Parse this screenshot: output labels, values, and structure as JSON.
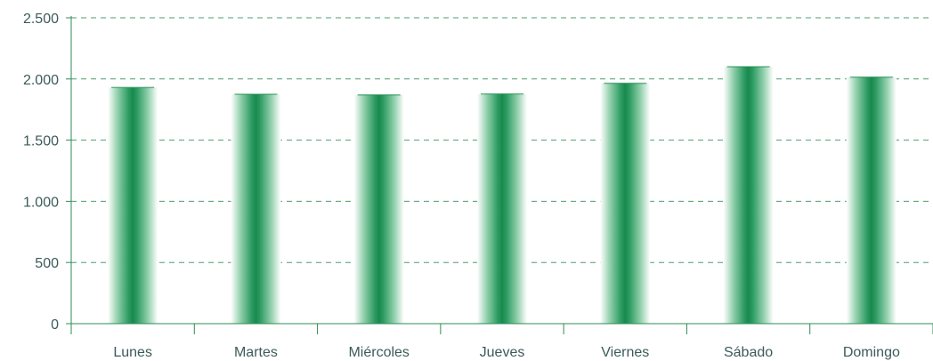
{
  "chart_data": {
    "type": "bar",
    "title": "",
    "xlabel": "",
    "ylabel": "",
    "categories": [
      "Lunes",
      "Martes",
      "Miércoles",
      "Jueves",
      "Viernes",
      "Sábado",
      "Domingo"
    ],
    "values": [
      1930,
      1875,
      1870,
      1878,
      1965,
      2100,
      2015
    ],
    "ylim": [
      0,
      2500
    ],
    "y_ticks": [
      0,
      500,
      1000,
      1500,
      2000,
      2500
    ],
    "y_tick_labels": [
      "0",
      "500",
      "1.000",
      "1.500",
      "2.000",
      "2.500"
    ],
    "grid": true,
    "legend": "none",
    "colors": {
      "bar_core": "#1a8a4e",
      "bar_edge": "#ffffff",
      "grid": "#2e8b57",
      "axis": "#2e8b57",
      "text": "#3c5a5a"
    }
  }
}
